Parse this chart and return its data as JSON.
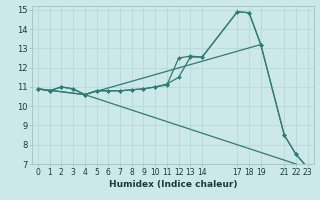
{
  "xlabel": "Humidex (Indice chaleur)",
  "bg_color": "#cce8e8",
  "grid_color": "#b8d8d8",
  "line_color": "#2e7d70",
  "xlim": [
    -0.5,
    23.5
  ],
  "ylim": [
    7,
    15.2
  ],
  "xticks": [
    0,
    1,
    2,
    3,
    4,
    5,
    6,
    7,
    8,
    9,
    10,
    11,
    12,
    13,
    14,
    17,
    18,
    19,
    21,
    22,
    23
  ],
  "yticks": [
    7,
    8,
    9,
    10,
    11,
    12,
    13,
    14,
    15
  ],
  "series": [
    {
      "x": [
        0,
        1,
        2,
        3,
        4,
        5,
        6,
        7,
        8,
        9,
        10,
        11,
        12,
        13,
        14,
        17,
        18,
        19
      ],
      "y": [
        10.9,
        10.8,
        11.0,
        10.9,
        10.6,
        10.8,
        10.8,
        10.8,
        10.85,
        10.9,
        11.0,
        11.1,
        12.5,
        12.6,
        12.55,
        14.9,
        14.85,
        13.2
      ]
    },
    {
      "x": [
        0,
        1,
        2,
        3,
        4,
        5,
        6,
        7,
        8,
        9,
        10,
        11,
        12,
        13,
        14,
        17,
        18,
        19,
        21,
        22,
        23
      ],
      "y": [
        10.9,
        10.8,
        11.0,
        10.9,
        10.6,
        10.8,
        10.8,
        10.8,
        10.85,
        10.9,
        11.0,
        11.15,
        11.5,
        12.55,
        12.55,
        14.9,
        14.85,
        13.2,
        8.5,
        7.5,
        6.8
      ]
    },
    {
      "x": [
        0,
        4,
        23
      ],
      "y": [
        10.9,
        10.6,
        6.8
      ]
    },
    {
      "x": [
        0,
        4,
        19,
        21,
        22,
        23
      ],
      "y": [
        10.9,
        10.6,
        13.2,
        8.5,
        7.5,
        6.8
      ]
    }
  ]
}
